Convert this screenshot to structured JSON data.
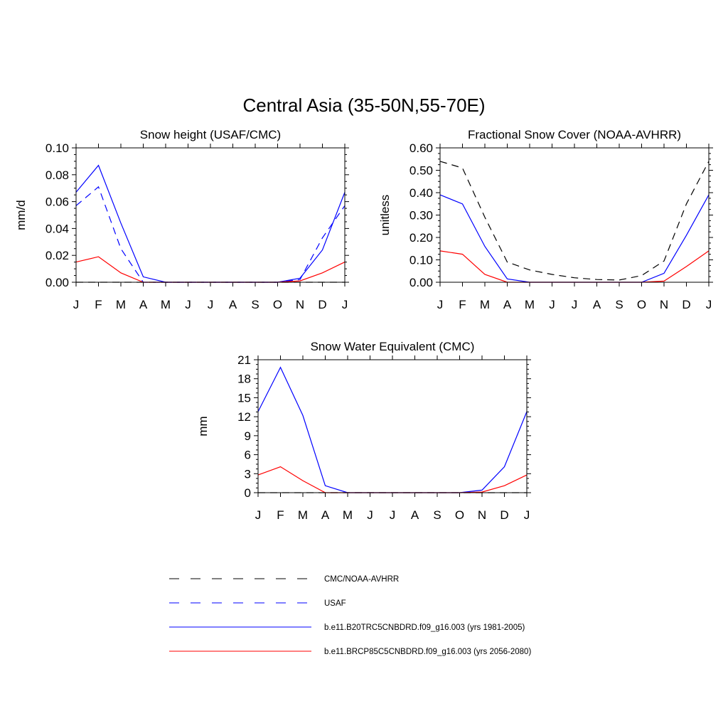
{
  "figure": {
    "title": "Central Asia (35-50N,55-70E)"
  },
  "legend": [
    {
      "label": "CMC/NOAA-AVHRR",
      "color": "#000000",
      "dash": "dashed"
    },
    {
      "label": "USAF",
      "color": "#0000ff",
      "dash": "dashed"
    },
    {
      "label": "b.e11.B20TRC5CNBDRD.f09_g16.003 (yrs 1981-2005)",
      "color": "#0000ff",
      "dash": "solid"
    },
    {
      "label": "b.e11.BRCP85C5CNBDRD.f09_g16.003 (yrs 2056-2080)",
      "color": "#ff0000",
      "dash": "solid"
    }
  ],
  "chart_data": [
    {
      "type": "line",
      "title": "Snow height (USAF/CMC)",
      "xlabel": "",
      "ylabel": "mm/d",
      "categories": [
        "J",
        "F",
        "M",
        "A",
        "M",
        "J",
        "J",
        "A",
        "S",
        "O",
        "N",
        "D",
        "J"
      ],
      "ylim": [
        0,
        0.1
      ],
      "yticks": [
        "0.00",
        "0.02",
        "0.04",
        "0.06",
        "0.08",
        "0.10"
      ],
      "series": [
        {
          "name": "CMC/NOAA-AVHRR",
          "color": "#000000",
          "dash": "dashed",
          "values": [
            0,
            0,
            0,
            0,
            0,
            0,
            0,
            0,
            0,
            0,
            0,
            0,
            0
          ]
        },
        {
          "name": "USAF",
          "color": "#0000ff",
          "dash": "dashed",
          "values": [
            0.057,
            0.071,
            0.025,
            0,
            0,
            0,
            0,
            0,
            0,
            0,
            0.002,
            0.033,
            0.057
          ]
        },
        {
          "name": "b.e11.B20TRC5CNBDRD.f09_g16.003 (yrs 1981-2005)",
          "color": "#0000ff",
          "dash": "solid",
          "values": [
            0.067,
            0.087,
            0.044,
            0.004,
            0,
            0,
            0,
            0,
            0,
            0,
            0.003,
            0.024,
            0.067
          ]
        },
        {
          "name": "b.e11.BRCP85C5CNBDRD.f09_g16.003 (yrs 2056-2080)",
          "color": "#ff0000",
          "dash": "solid",
          "values": [
            0.015,
            0.019,
            0.007,
            0,
            0,
            0,
            0,
            0,
            0,
            0,
            0.001,
            0.007,
            0.015
          ]
        }
      ]
    },
    {
      "type": "line",
      "title": "Fractional Snow Cover (NOAA-AVHRR)",
      "xlabel": "",
      "ylabel": "unitless",
      "categories": [
        "J",
        "F",
        "M",
        "A",
        "M",
        "J",
        "J",
        "A",
        "S",
        "O",
        "N",
        "D",
        "J"
      ],
      "ylim": [
        0,
        0.6
      ],
      "yticks": [
        "0.00",
        "0.10",
        "0.20",
        "0.30",
        "0.40",
        "0.50",
        "0.60"
      ],
      "series": [
        {
          "name": "CMC/NOAA-AVHRR",
          "color": "#000000",
          "dash": "dashed",
          "values": [
            0.54,
            0.51,
            0.29,
            0.09,
            0.055,
            0.035,
            0.02,
            0.012,
            0.01,
            0.03,
            0.095,
            0.35,
            0.54
          ]
        },
        {
          "name": "b.e11.B20TRC5CNBDRD.f09_g16.003 (yrs 1981-2005)",
          "color": "#0000ff",
          "dash": "solid",
          "values": [
            0.39,
            0.35,
            0.16,
            0.015,
            0,
            0,
            0,
            0,
            0,
            0,
            0.04,
            0.21,
            0.39
          ]
        },
        {
          "name": "b.e11.BRCP85C5CNBDRD.f09_g16.003 (yrs 2056-2080)",
          "color": "#ff0000",
          "dash": "solid",
          "values": [
            0.14,
            0.125,
            0.035,
            0,
            0,
            0,
            0,
            0,
            0,
            0,
            0.005,
            0.07,
            0.14
          ]
        }
      ]
    },
    {
      "type": "line",
      "title": "Snow Water Equivalent (CMC)",
      "xlabel": "",
      "ylabel": "mm",
      "categories": [
        "J",
        "F",
        "M",
        "A",
        "M",
        "J",
        "J",
        "A",
        "S",
        "O",
        "N",
        "D",
        "J"
      ],
      "ylim": [
        0,
        21
      ],
      "yticks": [
        "0",
        "3",
        "6",
        "9",
        "12",
        "15",
        "18",
        "21"
      ],
      "series": [
        {
          "name": "CMC/NOAA-AVHRR",
          "color": "#000000",
          "dash": "dashed",
          "values": [
            0,
            0,
            0,
            0,
            0,
            0,
            0,
            0,
            0,
            0,
            0,
            0,
            0
          ]
        },
        {
          "name": "b.e11.B20TRC5CNBDRD.f09_g16.003 (yrs 1981-2005)",
          "color": "#0000ff",
          "dash": "solid",
          "values": [
            12.8,
            19.8,
            12.2,
            1.1,
            0,
            0,
            0,
            0,
            0,
            0,
            0.4,
            4.1,
            12.8
          ]
        },
        {
          "name": "b.e11.BRCP85C5CNBDRD.f09_g16.003 (yrs 2056-2080)",
          "color": "#ff0000",
          "dash": "solid",
          "values": [
            2.8,
            4.1,
            1.9,
            0,
            0,
            0,
            0,
            0,
            0,
            0,
            0.1,
            1.1,
            2.8
          ]
        }
      ]
    }
  ]
}
